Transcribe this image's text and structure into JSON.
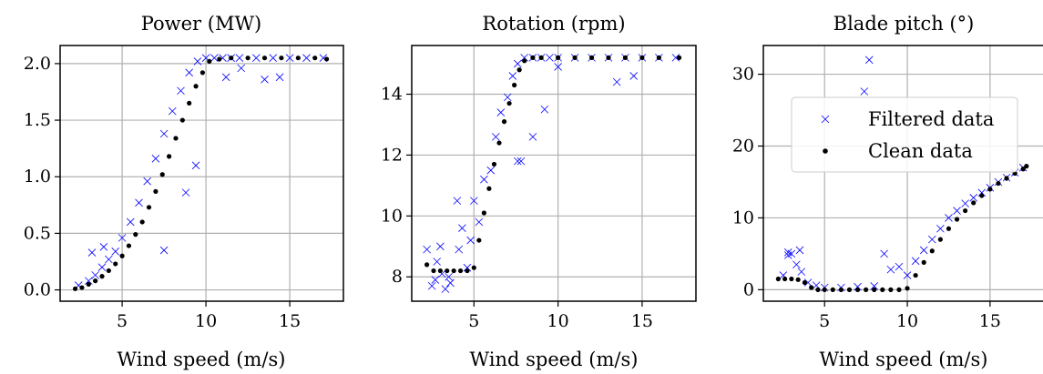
{
  "figure": {
    "colors": {
      "filtered": "#0000ff",
      "clean": "#000000",
      "grid": "#b0b0b0",
      "legend_edge": "#cccccc"
    },
    "legend": {
      "placement": "upper-right of third panel",
      "entries": [
        {
          "label": "Filtered data",
          "marker": "x",
          "color": "#0000ff"
        },
        {
          "label": "Clean data",
          "marker": "dot",
          "color": "#000000"
        }
      ]
    }
  },
  "chart_data": [
    {
      "type": "scatter",
      "title": "Power (MW)",
      "xlabel": "Wind speed (m/s)",
      "ylabel": "",
      "xlim": [
        1.3,
        18.2
      ],
      "ylim": [
        -0.1,
        2.16
      ],
      "xticks": [
        5,
        10,
        15
      ],
      "xtick_labels": [
        "5",
        "10",
        "15"
      ],
      "yticks": [
        0.0,
        0.5,
        1.0,
        1.5,
        2.0
      ],
      "ytick_labels": [
        "0.0",
        "0.5",
        "1.0",
        "1.5",
        "2.0"
      ],
      "grid": true,
      "series": [
        {
          "name": "Filtered data",
          "marker": "x",
          "x": [
            2.4,
            3.0,
            3.4,
            3.8,
            4.2,
            4.6,
            5.0,
            5.5,
            6.0,
            6.5,
            7.0,
            7.5,
            8.0,
            8.5,
            9.0,
            9.5,
            10.0,
            10.5,
            11.0,
            11.5,
            12.0,
            13.0,
            14.0,
            15.0,
            16.0,
            17.0,
            3.2,
            3.9,
            7.5,
            8.8,
            9.4,
            11.2,
            12.1,
            13.5,
            14.4
          ],
          "y": [
            0.04,
            0.08,
            0.13,
            0.2,
            0.27,
            0.34,
            0.46,
            0.6,
            0.77,
            0.96,
            1.16,
            1.38,
            1.58,
            1.76,
            1.92,
            2.02,
            2.05,
            2.05,
            2.05,
            2.05,
            2.05,
            2.05,
            2.05,
            2.05,
            2.05,
            2.05,
            0.33,
            0.38,
            0.35,
            0.86,
            1.1,
            1.88,
            1.96,
            1.86,
            1.88
          ]
        },
        {
          "name": "Clean data",
          "marker": "dot",
          "x": [
            2.2,
            2.6,
            3.0,
            3.4,
            3.8,
            4.2,
            4.6,
            5.0,
            5.4,
            5.8,
            6.2,
            6.6,
            7.0,
            7.4,
            7.8,
            8.2,
            8.6,
            9.0,
            9.4,
            9.8,
            10.2,
            10.8,
            11.5,
            12.5,
            13.5,
            14.5,
            15.5,
            16.5,
            17.2
          ],
          "y": [
            0.01,
            0.02,
            0.05,
            0.08,
            0.12,
            0.17,
            0.23,
            0.3,
            0.39,
            0.49,
            0.6,
            0.73,
            0.87,
            1.02,
            1.18,
            1.34,
            1.5,
            1.65,
            1.8,
            1.92,
            2.02,
            2.04,
            2.05,
            2.05,
            2.05,
            2.05,
            2.05,
            2.05,
            2.04
          ]
        }
      ]
    },
    {
      "type": "scatter",
      "title": "Rotation (rpm)",
      "xlabel": "Wind speed (m/s)",
      "ylabel": "",
      "xlim": [
        1.3,
        18.2
      ],
      "ylim": [
        7.2,
        15.6
      ],
      "xticks": [
        5,
        10,
        15
      ],
      "xtick_labels": [
        "5",
        "10",
        "15"
      ],
      "yticks": [
        8,
        10,
        12,
        14
      ],
      "ytick_labels": [
        "8",
        "10",
        "12",
        "14"
      ],
      "grid": true,
      "series": [
        {
          "name": "Filtered data",
          "marker": "x",
          "x": [
            2.2,
            2.5,
            2.8,
            3.0,
            3.3,
            3.6,
            4.0,
            4.3,
            4.6,
            5.0,
            5.3,
            5.6,
            6.0,
            6.3,
            6.6,
            7.0,
            7.3,
            7.6,
            8.0,
            8.5,
            9.0,
            9.5,
            10.0,
            11.0,
            12.0,
            13.0,
            14.0,
            15.0,
            16.0,
            17.0,
            2.7,
            3.1,
            3.5,
            4.1,
            4.8,
            7.6,
            7.8,
            8.5,
            9.2,
            10.0,
            13.5,
            14.5
          ],
          "y": [
            8.9,
            7.7,
            8.5,
            9.0,
            7.6,
            7.8,
            10.5,
            9.6,
            8.3,
            10.5,
            9.8,
            11.2,
            11.5,
            12.6,
            13.4,
            13.9,
            14.6,
            15.0,
            15.2,
            15.2,
            15.2,
            15.2,
            15.2,
            15.2,
            15.2,
            15.2,
            15.2,
            15.2,
            15.2,
            15.2,
            7.9,
            8.1,
            8.0,
            8.9,
            9.2,
            11.8,
            11.8,
            12.6,
            13.5,
            14.9,
            14.4,
            14.6
          ]
        },
        {
          "name": "Clean data",
          "marker": "dot",
          "x": [
            2.2,
            2.6,
            3.0,
            3.4,
            3.8,
            4.2,
            4.6,
            5.0,
            5.3,
            5.6,
            5.9,
            6.2,
            6.5,
            6.8,
            7.1,
            7.4,
            7.7,
            8.0,
            8.5,
            9.0,
            10.0,
            11.0,
            12.0,
            13.0,
            14.0,
            15.0,
            16.0,
            17.2
          ],
          "y": [
            8.4,
            8.2,
            8.2,
            8.2,
            8.2,
            8.2,
            8.2,
            8.3,
            9.2,
            10.1,
            10.9,
            11.7,
            12.4,
            13.1,
            13.7,
            14.3,
            14.8,
            15.1,
            15.2,
            15.2,
            15.2,
            15.2,
            15.2,
            15.2,
            15.2,
            15.2,
            15.2,
            15.2
          ]
        }
      ]
    },
    {
      "type": "scatter",
      "title": "Blade pitch (°)",
      "xlabel": "Wind speed (m/s)",
      "ylabel": "",
      "xlim": [
        1.3,
        18.2
      ],
      "ylim": [
        -1.6,
        34.0
      ],
      "xticks": [
        5,
        10,
        15
      ],
      "xtick_labels": [
        "5",
        "10",
        "15"
      ],
      "yticks": [
        0,
        10,
        20,
        30
      ],
      "ytick_labels": [
        "0",
        "10",
        "20",
        "30"
      ],
      "grid": true,
      "series": [
        {
          "name": "Filtered data",
          "marker": "x",
          "x": [
            2.5,
            2.8,
            3.0,
            3.3,
            3.6,
            4.0,
            4.5,
            5.0,
            6.0,
            7.0,
            8.0,
            8.6,
            9.0,
            9.5,
            10.0,
            10.5,
            11.0,
            11.5,
            12.0,
            12.5,
            13.0,
            13.5,
            14.0,
            14.5,
            15.0,
            15.5,
            16.0,
            16.5,
            17.0,
            7.7,
            7.4,
            2.8,
            3.5
          ],
          "y": [
            2.0,
            5.2,
            5.0,
            3.5,
            2.5,
            1.0,
            0.6,
            0.3,
            0.3,
            0.4,
            0.5,
            5.0,
            2.8,
            3.2,
            2.0,
            4.0,
            5.5,
            7.0,
            8.5,
            10.0,
            11.0,
            12.0,
            12.8,
            13.5,
            14.2,
            15.0,
            15.6,
            16.3,
            17.0,
            32.0,
            27.6,
            4.8,
            5.5
          ]
        },
        {
          "name": "Clean data",
          "marker": "dot",
          "x": [
            2.2,
            2.6,
            3.0,
            3.4,
            3.8,
            4.2,
            4.6,
            5.0,
            5.5,
            6.0,
            6.5,
            7.0,
            7.5,
            8.0,
            8.5,
            9.0,
            9.5,
            10.0,
            10.5,
            11.0,
            11.5,
            12.0,
            12.5,
            13.0,
            13.5,
            14.0,
            14.5,
            15.0,
            15.5,
            16.0,
            16.5,
            17.0,
            17.2
          ],
          "y": [
            1.5,
            1.5,
            1.5,
            1.4,
            1.0,
            0.3,
            0.0,
            0.0,
            0.0,
            0.0,
            0.0,
            0.0,
            0.0,
            0.0,
            0.0,
            0.0,
            0.0,
            0.2,
            2.0,
            3.8,
            5.4,
            7.0,
            8.5,
            9.8,
            11.0,
            12.1,
            13.1,
            14.0,
            14.8,
            15.5,
            16.2,
            16.8,
            17.2
          ]
        }
      ]
    }
  ]
}
